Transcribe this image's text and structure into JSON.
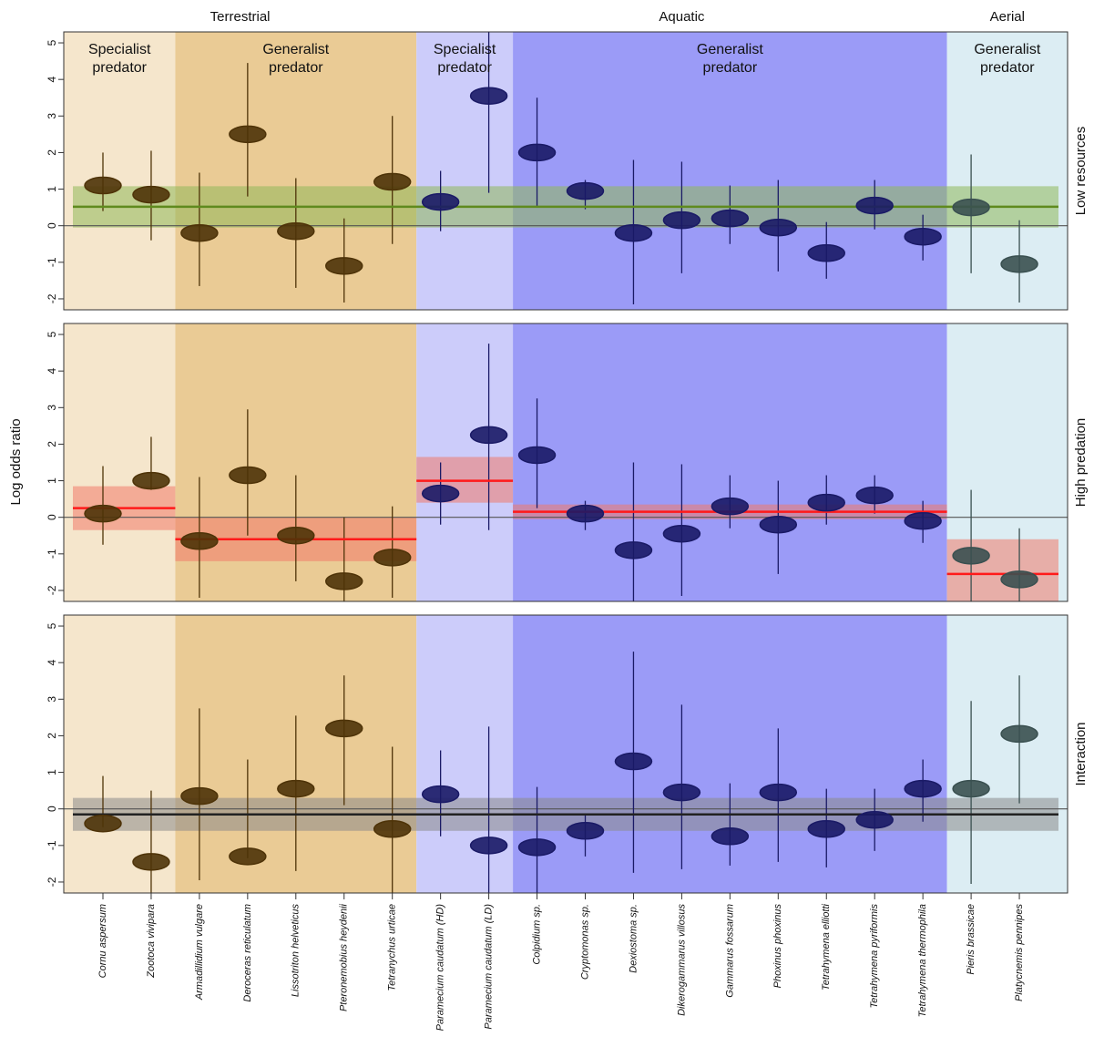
{
  "chart_data": {
    "type": "forest",
    "y_label": "Log odds ratio",
    "ylim": [
      -2.3,
      5.3
    ],
    "yticks": [
      -2,
      -1,
      0,
      1,
      2,
      3,
      4,
      5
    ],
    "habitats": [
      {
        "name": "Terrestrial",
        "groups": [
          {
            "guild": "Specialist predator",
            "color": "#f5e6cc",
            "mark_color": "#4e3308",
            "species": [
              "Cornu aspersum",
              "Zootoca vivipara"
            ]
          },
          {
            "guild": "Generalist predator",
            "color": "#eacb95",
            "mark_color": "#4e3308",
            "species": [
              "Armadillidium vulgare",
              "Deroceras reticulatum",
              "Lissotriton helveticus",
              "Pteronemobius heydenii",
              "Tetranychus urticae"
            ]
          }
        ]
      },
      {
        "name": "Aquatic",
        "groups": [
          {
            "guild": "Specialist predator",
            "color": "#ccccfa",
            "mark_color": "#1a1a66",
            "species": [
              "Paramecium caudatum (HD)",
              "Paramecium caudatum (LD)"
            ]
          },
          {
            "guild": "Generalist predator",
            "color": "#9b9bf7",
            "mark_color": "#1a1a66",
            "species": [
              "Colpidium sp.",
              "Cryptomonas sp.",
              "Dexiostoma sp.",
              "Dikerogammarus villosus",
              "Gammarus fossarum",
              "Phoxinus phoxinus",
              "Tetrahymena elliotti",
              "Tetrahymena pyriformis",
              "Tetrahymena thermophila"
            ]
          }
        ]
      },
      {
        "name": "Aerial",
        "groups": [
          {
            "guild": "Generalist predator",
            "color": "#dcedf3",
            "mark_color": "#3a5050",
            "species": [
              "Pieris brassicae",
              "Platycnemis pennipes"
            ]
          }
        ]
      }
    ],
    "panels": [
      {
        "label": "Low resources",
        "line_color": "#5f8a1e",
        "band_color": "#8fb85a",
        "estimates": [
          1.1,
          0.85,
          -0.2,
          2.5,
          -0.15,
          -1.1,
          1.2,
          0.65,
          3.55,
          2.0,
          0.95,
          -0.2,
          0.15,
          0.2,
          -0.05,
          -0.75,
          0.55,
          -0.3,
          0.5,
          -1.05
        ],
        "ci_low": [
          0.4,
          -0.4,
          -1.65,
          0.8,
          -1.7,
          -2.1,
          -0.5,
          -0.15,
          0.9,
          0.5,
          0.45,
          -2.15,
          -1.3,
          -0.5,
          -1.25,
          -1.45,
          -0.1,
          -0.95,
          -1.3,
          -2.1
        ],
        "ci_high": [
          2.0,
          2.05,
          1.45,
          4.45,
          1.3,
          0.2,
          3.0,
          1.5,
          5.3,
          3.5,
          1.25,
          1.8,
          1.75,
          1.1,
          1.25,
          0.1,
          1.25,
          0.3,
          1.95,
          0.15
        ],
        "mean": {
          "value": 0.52,
          "low": -0.05,
          "high": 1.08
        }
      },
      {
        "label": "High predation",
        "line_color": "#ff1a1a",
        "band_color": "#f07a6a",
        "estimates": [
          0.1,
          1.0,
          -0.65,
          1.15,
          -0.5,
          -1.75,
          -1.1,
          0.65,
          2.25,
          1.7,
          0.1,
          -0.9,
          -0.45,
          0.3,
          -0.2,
          0.4,
          0.6,
          -0.1,
          -1.05,
          -1.7
        ],
        "ci_low": [
          -0.75,
          0.75,
          -2.2,
          -0.5,
          -1.75,
          -2.3,
          -2.2,
          -0.2,
          -0.35,
          0.25,
          -0.35,
          -2.3,
          -2.15,
          -0.3,
          -1.55,
          -0.2,
          0.1,
          -0.7,
          -2.3,
          -2.3
        ],
        "ci_high": [
          1.4,
          2.2,
          1.1,
          2.95,
          1.15,
          0.0,
          0.3,
          1.5,
          4.75,
          3.25,
          0.45,
          1.5,
          1.45,
          1.15,
          1.0,
          1.15,
          1.15,
          0.45,
          0.75,
          -0.3
        ],
        "group_means": [
          {
            "value": 0.25,
            "low": -0.35,
            "high": 0.85
          },
          {
            "value": -0.6,
            "low": -1.2,
            "high": 0.0
          },
          {
            "value": 1.0,
            "low": 0.4,
            "high": 1.65
          },
          {
            "value": 0.15,
            "low": -0.05,
            "high": 0.35
          },
          {
            "value": -1.55,
            "low": -2.3,
            "high": -0.6
          }
        ]
      },
      {
        "label": "Interaction",
        "line_color": "#222222",
        "band_color": "#8a8a8a",
        "estimates": [
          -0.4,
          -1.45,
          0.35,
          -1.3,
          0.55,
          2.2,
          -0.55,
          0.4,
          -1.0,
          -1.05,
          -0.6,
          1.3,
          0.45,
          -0.75,
          0.45,
          -0.55,
          -0.3,
          0.55,
          0.55,
          2.05
        ],
        "ci_low": [
          -0.5,
          -2.3,
          -1.95,
          -1.35,
          -1.7,
          0.1,
          -2.3,
          -0.75,
          -2.3,
          -2.3,
          -1.3,
          -1.75,
          -1.65,
          -1.55,
          -1.45,
          -1.6,
          -1.15,
          -0.35,
          -2.05,
          0.15
        ],
        "ci_high": [
          0.9,
          0.5,
          2.75,
          1.35,
          2.55,
          3.65,
          1.7,
          1.6,
          2.25,
          0.6,
          -0.15,
          4.3,
          2.85,
          0.7,
          2.2,
          0.55,
          0.55,
          1.35,
          2.95,
          3.65
        ],
        "mean": {
          "value": -0.15,
          "low": -0.6,
          "high": 0.3
        }
      }
    ]
  }
}
